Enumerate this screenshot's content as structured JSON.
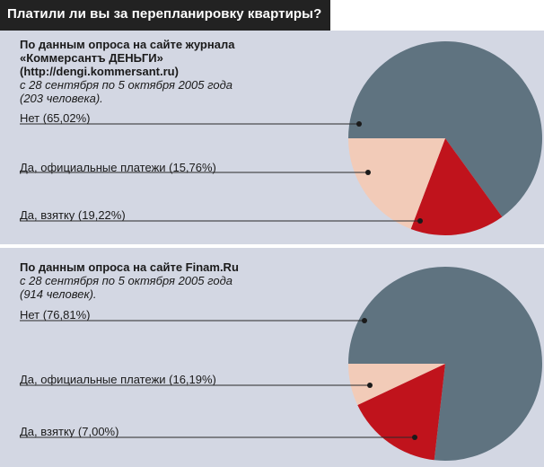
{
  "title": "Платили ли вы за перепланировку квартиры?",
  "colors": {
    "slate": "#5f7380",
    "red": "#c0131c",
    "peach": "#f2cbb8",
    "panel_bg": "#d3d7e3",
    "header_bg": "#222222"
  },
  "chart_data": [
    {
      "type": "pie",
      "source_line1": "По данным опроса на сайте журнала",
      "source_line2": "«Коммерсантъ ДЕНЬГИ»",
      "source_line3": "(http://dengi.kommersant.ru)",
      "period": "с 28 сентября по 5 октября 2005 года",
      "sample": "(203 человека).",
      "slices": [
        {
          "label": "Нет (65,02%)",
          "value": 65.02,
          "color": "#5f7380"
        },
        {
          "label": "Да, официальные платежи  (15,76%)",
          "value": 15.76,
          "color": "#c0131c"
        },
        {
          "label": "Да, взятку (19,22%)",
          "value": 19.22,
          "color": "#f2cbb8"
        }
      ]
    },
    {
      "type": "pie",
      "source_line1": "По данным опроса на сайте Finam.Ru",
      "period": "с 28 сентября по 5 октября 2005 года",
      "sample": "(914 человек).",
      "slices": [
        {
          "label": "Нет (76,81%)",
          "value": 76.81,
          "color": "#5f7380"
        },
        {
          "label": "Да, официальные платежи  (16,19%)",
          "value": 16.19,
          "color": "#c0131c"
        },
        {
          "label": "Да, взятку (7,00%)",
          "value": 7.0,
          "color": "#f2cbb8"
        }
      ]
    }
  ]
}
